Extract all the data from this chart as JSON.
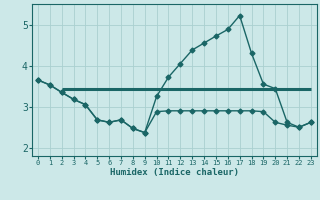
{
  "bg_color": "#cce8e8",
  "grid_color": "#aad0d0",
  "line_color": "#1a6666",
  "xlabel": "Humidex (Indice chaleur)",
  "xlim": [
    -0.5,
    23.5
  ],
  "ylim": [
    1.8,
    5.5
  ],
  "yticks": [
    2,
    3,
    4,
    5
  ],
  "xticks": [
    0,
    1,
    2,
    3,
    4,
    5,
    6,
    7,
    8,
    9,
    10,
    11,
    12,
    13,
    14,
    15,
    16,
    17,
    18,
    19,
    20,
    21,
    22,
    23
  ],
  "series1_x": [
    2,
    23
  ],
  "series1_y": [
    3.44,
    3.44
  ],
  "series2_x": [
    0,
    1,
    2,
    3,
    4,
    5,
    6,
    7,
    8,
    9,
    10,
    11,
    12,
    13,
    14,
    15,
    16,
    17,
    18,
    19,
    20,
    21,
    22,
    23
  ],
  "series2_y": [
    3.65,
    3.53,
    3.35,
    3.18,
    3.05,
    2.68,
    2.62,
    2.68,
    2.47,
    2.37,
    2.88,
    2.9,
    2.9,
    2.9,
    2.9,
    2.9,
    2.9,
    2.9,
    2.9,
    2.88,
    2.62,
    2.55,
    2.5,
    2.62
  ],
  "series3_x": [
    0,
    1,
    2,
    3,
    4,
    5,
    6,
    7,
    8,
    9,
    10,
    11,
    12,
    13,
    14,
    15,
    16,
    17,
    18,
    19,
    20,
    21,
    22,
    23
  ],
  "series3_y": [
    3.65,
    3.53,
    3.35,
    3.18,
    3.05,
    2.68,
    2.62,
    2.68,
    2.47,
    2.37,
    3.25,
    3.72,
    4.05,
    4.38,
    4.55,
    4.72,
    4.88,
    5.22,
    4.3,
    3.55,
    3.44,
    2.62,
    2.5,
    2.62
  ],
  "marker": "D",
  "markersize": 2.5,
  "linewidth_thick": 2.2,
  "linewidth_thin": 1.0,
  "xlabel_fontsize": 6.5,
  "xtick_fontsize": 5.0,
  "ytick_fontsize": 7.0
}
